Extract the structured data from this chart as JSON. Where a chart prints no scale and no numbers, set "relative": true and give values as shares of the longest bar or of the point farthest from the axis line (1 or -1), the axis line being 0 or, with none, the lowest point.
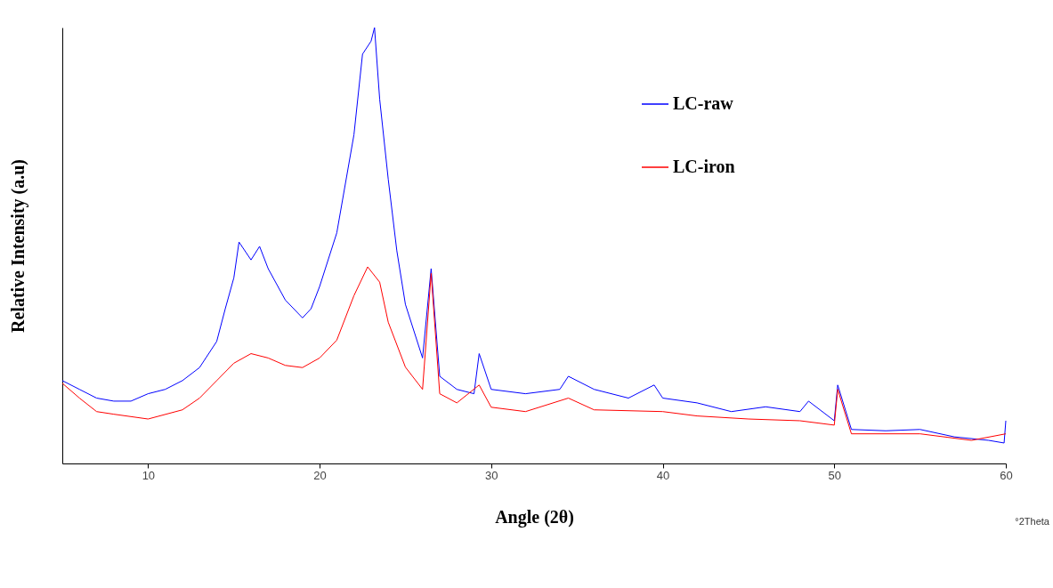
{
  "chart_data": {
    "type": "line",
    "relative": true,
    "xlabel": "Angle (2θ)",
    "ylabel": "Relative Intensity  (a.u)",
    "annotations": [
      "°2Theta"
    ],
    "xlim": [
      5,
      60
    ],
    "xticks": [
      10,
      20,
      30,
      40,
      50,
      60
    ],
    "legend": "top right",
    "grid": false,
    "series": [
      {
        "name": "LC-raw",
        "color": "#0000ff",
        "x": [
          5,
          6,
          7,
          8,
          9,
          10,
          11,
          12,
          13,
          14,
          14.5,
          15,
          15.3,
          16,
          16.5,
          17,
          18,
          19,
          19.5,
          20,
          21,
          22,
          22.5,
          23,
          23.2,
          23.5,
          24,
          24.5,
          25,
          26,
          26.5,
          27,
          28,
          29,
          29.3,
          30,
          32,
          34,
          34.5,
          36,
          38,
          39.5,
          40,
          42,
          44,
          46,
          48,
          48.5,
          50,
          50.2,
          51,
          53,
          55,
          57,
          59,
          59.9,
          60
        ],
        "values": [
          0.19,
          0.17,
          0.15,
          0.143,
          0.143,
          0.16,
          0.17,
          0.19,
          0.22,
          0.28,
          0.355,
          0.426,
          0.508,
          0.467,
          0.498,
          0.447,
          0.375,
          0.334,
          0.355,
          0.406,
          0.529,
          0.754,
          0.939,
          0.969,
          1,
          0.836,
          0.652,
          0.488,
          0.365,
          0.242,
          0.447,
          0.2,
          0.17,
          0.16,
          0.252,
          0.17,
          0.16,
          0.17,
          0.2,
          0.17,
          0.15,
          0.18,
          0.15,
          0.139,
          0.119,
          0.13,
          0.119,
          0.143,
          0.098,
          0.18,
          0.078,
          0.075,
          0.078,
          0.061,
          0.053,
          0.047,
          0.098
        ]
      },
      {
        "name": "LC-iron",
        "color": "#ff0000",
        "x": [
          5,
          6,
          7,
          8,
          10,
          12,
          13,
          14,
          15,
          16,
          17,
          18,
          19,
          20,
          21,
          22,
          22.8,
          23.5,
          24,
          25,
          26,
          26.5,
          27,
          28,
          29.3,
          30,
          32,
          34.5,
          36,
          40,
          42,
          45,
          48,
          50,
          50.2,
          51,
          55,
          58,
          60
        ],
        "values": [
          0.184,
          0.15,
          0.119,
          0.113,
          0.102,
          0.123,
          0.15,
          0.19,
          0.23,
          0.252,
          0.242,
          0.225,
          0.22,
          0.242,
          0.283,
          0.385,
          0.451,
          0.416,
          0.324,
          0.221,
          0.17,
          0.436,
          0.16,
          0.139,
          0.18,
          0.129,
          0.119,
          0.15,
          0.123,
          0.119,
          0.109,
          0.102,
          0.098,
          0.088,
          0.17,
          0.068,
          0.068,
          0.053,
          0.068
        ]
      }
    ]
  }
}
